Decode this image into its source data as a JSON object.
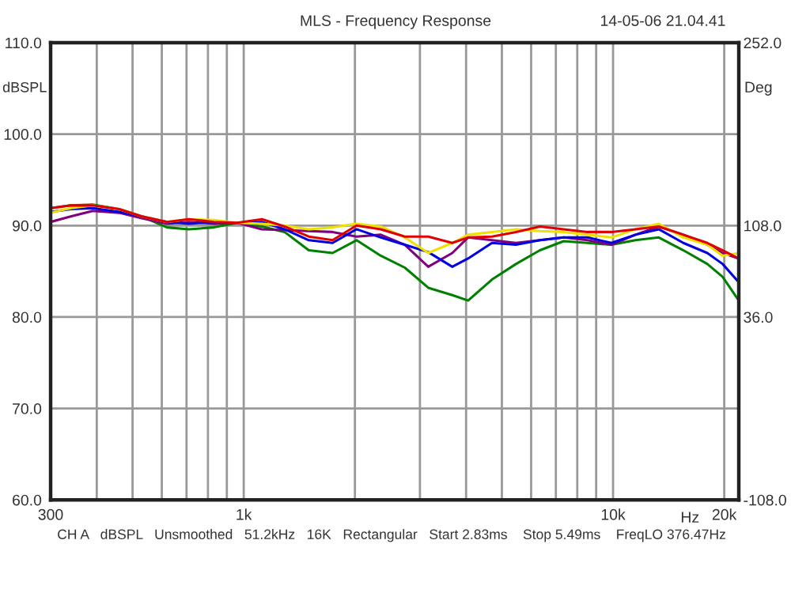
{
  "chart_data": {
    "type": "line",
    "title": "MLS - Frequency Response",
    "ylabel": "dBSPL",
    "y2label": "Deg",
    "xlabel": "Hz",
    "annotations": [
      "14-05-06 21.04.41",
      "CH A   dBSPL   Unsmoothed   51.2kHz   16K   Rectangular   Start 2.83ms    Stop 5.49ms    FreqLO 376.47Hz"
    ],
    "x": [
      300,
      340,
      390,
      460,
      530,
      620,
      710,
      830,
      960,
      1120,
      1290,
      1500,
      1740,
      2020,
      2350,
      2730,
      3160,
      3670,
      4050,
      4700,
      5460,
      6340,
      7350,
      8530,
      9900,
      11500,
      13300,
      15500,
      18000,
      19800,
      21900
    ],
    "series": [
      {
        "color": "#008000",
        "values": [
          91.9,
          92.2,
          92.3,
          91.8,
          91.0,
          89.8,
          89.6,
          89.8,
          90.3,
          89.9,
          89.3,
          87.3,
          87.0,
          88.4,
          86.7,
          85.4,
          83.2,
          82.4,
          81.8,
          84.1,
          85.8,
          87.3,
          88.3,
          88.1,
          87.9,
          88.4,
          88.7,
          87.3,
          85.8,
          84.4,
          81.8
        ]
      },
      {
        "color": "#800080",
        "values": [
          90.4,
          91.0,
          91.6,
          91.4,
          90.8,
          90.2,
          90.4,
          90.2,
          90.3,
          89.6,
          89.5,
          89.4,
          89.3,
          88.8,
          89.0,
          87.9,
          85.5,
          87.0,
          88.7,
          88.4,
          88.1,
          88.4,
          88.7,
          88.4,
          87.9,
          89.0,
          89.9,
          89.0,
          87.9,
          87.0,
          86.4
        ]
      },
      {
        "color": "#0000e0",
        "values": [
          91.5,
          91.8,
          91.9,
          91.5,
          91.0,
          90.4,
          90.2,
          90.4,
          90.3,
          90.4,
          89.6,
          88.4,
          88.1,
          89.6,
          88.7,
          87.9,
          87.1,
          85.5,
          86.4,
          88.1,
          87.9,
          88.4,
          88.7,
          88.7,
          88.1,
          89.0,
          89.6,
          88.1,
          87.0,
          85.8,
          83.8
        ]
      },
      {
        "color": "#f0e000",
        "values": [
          91.4,
          91.9,
          92.2,
          91.8,
          91.0,
          90.4,
          90.7,
          90.6,
          90.3,
          90.2,
          90.0,
          89.6,
          89.8,
          90.2,
          89.9,
          88.7,
          87.0,
          88.1,
          89.0,
          89.3,
          89.6,
          89.4,
          89.3,
          89.0,
          88.7,
          89.6,
          90.2,
          88.7,
          87.9,
          86.7,
          87.0
        ]
      },
      {
        "color": "#e00000",
        "values": [
          91.9,
          92.2,
          92.2,
          91.8,
          91.0,
          90.4,
          90.7,
          90.4,
          90.3,
          90.7,
          89.9,
          88.8,
          88.4,
          90.0,
          89.6,
          88.8,
          88.8,
          88.1,
          88.7,
          88.8,
          89.3,
          89.9,
          89.6,
          89.3,
          89.3,
          89.6,
          89.9,
          89.0,
          88.1,
          87.3,
          86.4
        ]
      }
    ],
    "log": "x",
    "grid": true,
    "legend": false,
    "xlim": [
      300,
      21900
    ],
    "xticks": [
      {
        "value": 300,
        "label": "300"
      },
      {
        "value": 400,
        "label": null
      },
      {
        "value": 500,
        "label": null
      },
      {
        "value": 600,
        "label": null
      },
      {
        "value": 700,
        "label": null
      },
      {
        "value": 800,
        "label": null
      },
      {
        "value": 900,
        "label": null
      },
      {
        "value": 1000,
        "label": "1k"
      },
      {
        "value": 2000,
        "label": null
      },
      {
        "value": 3000,
        "label": null
      },
      {
        "value": 4000,
        "label": null
      },
      {
        "value": 5000,
        "label": null
      },
      {
        "value": 6000,
        "label": null
      },
      {
        "value": 7000,
        "label": null
      },
      {
        "value": 8000,
        "label": null
      },
      {
        "value": 9000,
        "label": null
      },
      {
        "value": 10000,
        "label": "10k"
      },
      {
        "value": 20000,
        "label": "20k"
      }
    ],
    "ylim": [
      60,
      110
    ],
    "yticks": [
      {
        "value": 60,
        "label": "60.0"
      },
      {
        "value": 70,
        "label": "70.0"
      },
      {
        "value": 80,
        "label": "80.0"
      },
      {
        "value": 90,
        "label": "90.0"
      },
      {
        "value": 100,
        "label": "100.0"
      },
      {
        "value": 110,
        "label": "110.0"
      }
    ],
    "y2lim": [
      -108,
      252
    ],
    "y2ticks": [
      {
        "value": 252,
        "label": "252.0"
      },
      {
        "value": 108,
        "label": "108.0"
      },
      {
        "value": 36,
        "label": "36.0"
      },
      {
        "value": -108,
        "label": "-108.0"
      }
    ]
  }
}
